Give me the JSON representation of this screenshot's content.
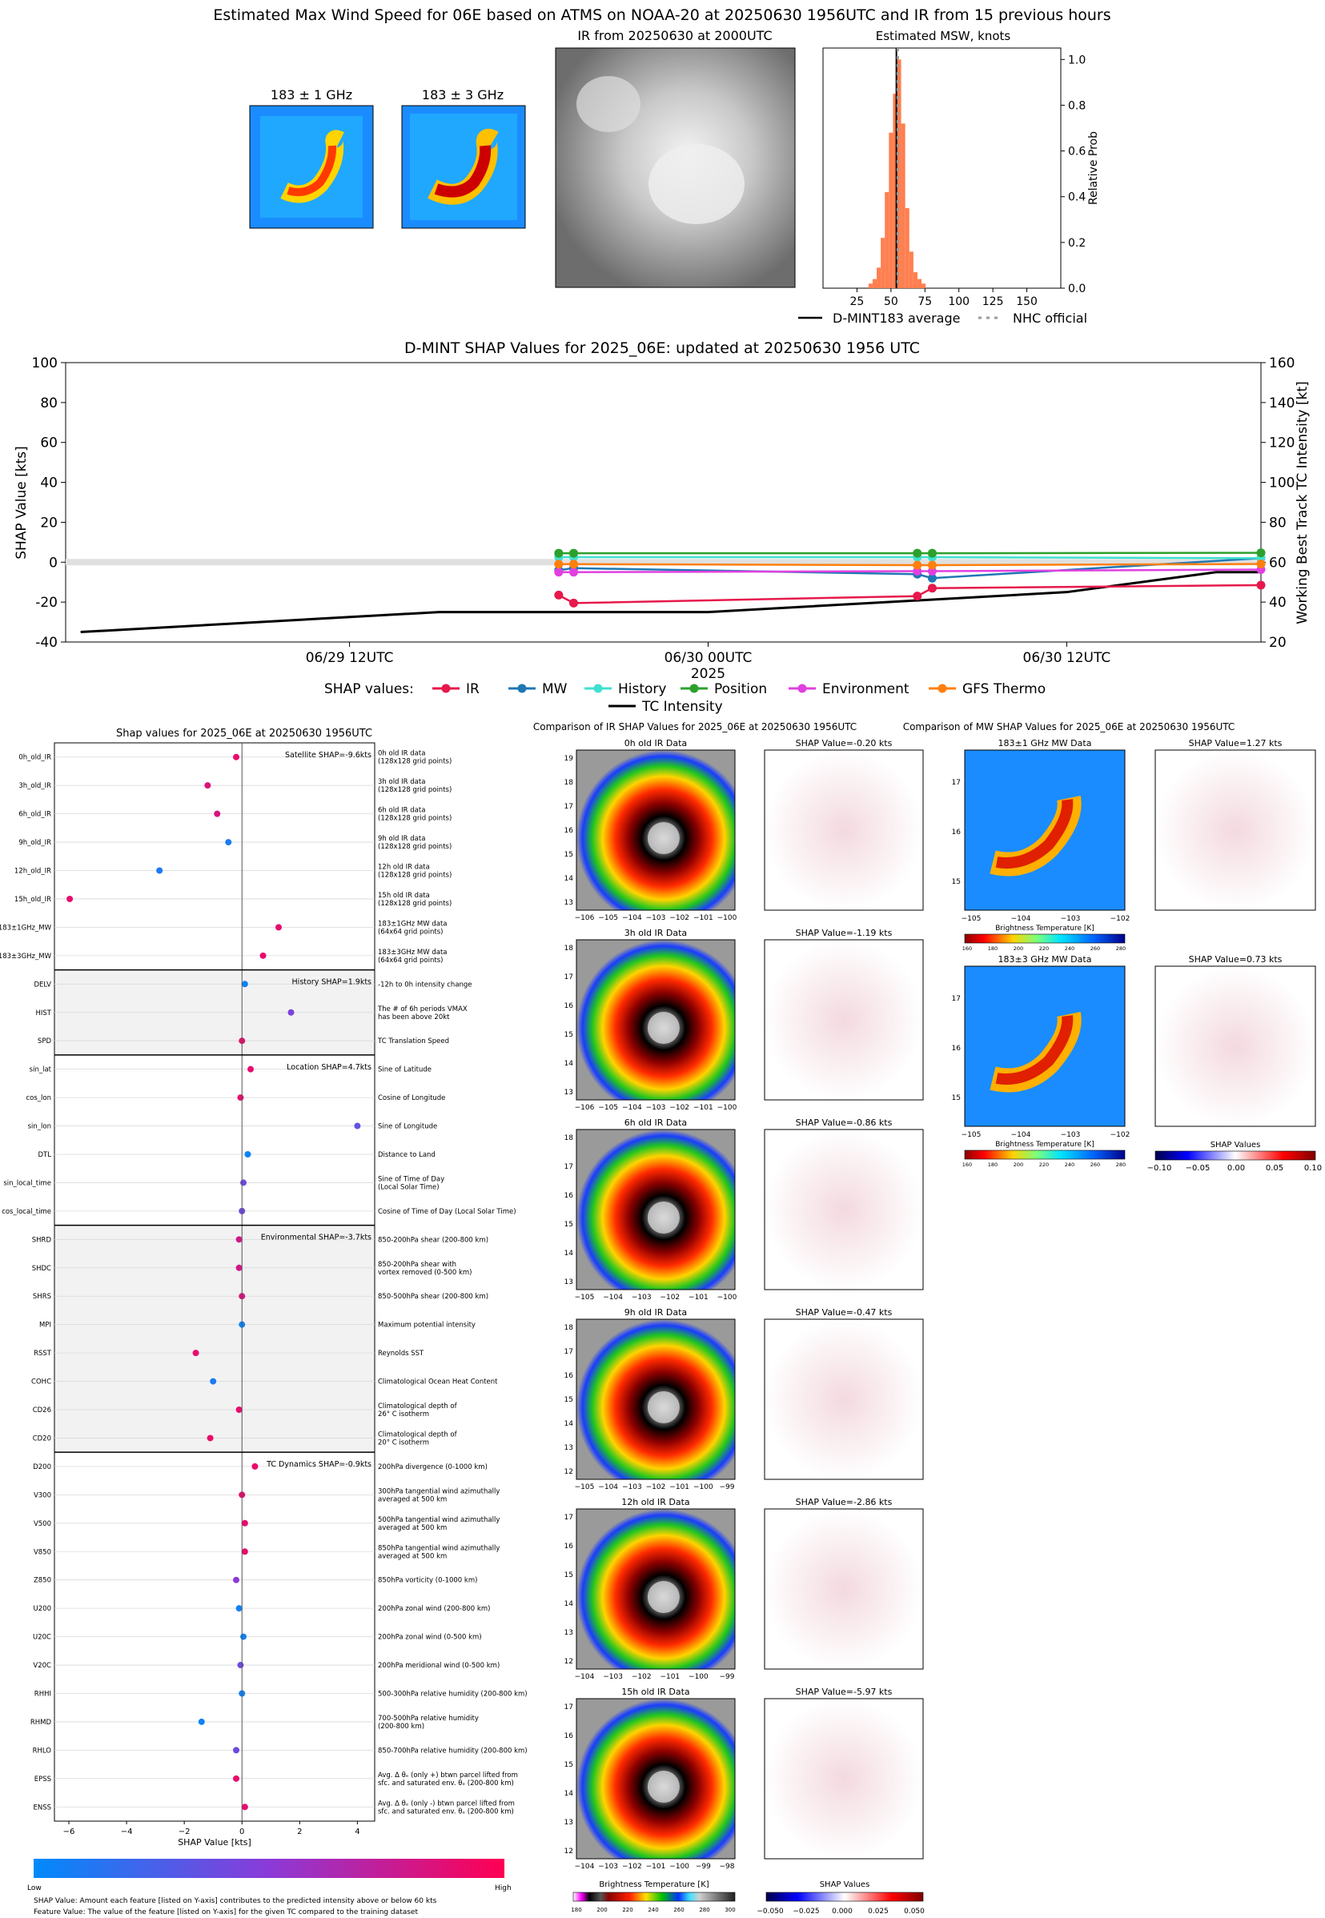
{
  "suptitle": "Estimated Max Wind Speed for 06E based on ATMS on NOAA-20 at 20250630 1956UTC and IR from 15 previous hours",
  "top": {
    "mw1_title": "183 ± 1 GHz",
    "mw3_title": "183 ± 3 GHz",
    "ir_title": "IR from 20250630 at 2000UTC",
    "hist_title": "Estimated MSW, knots",
    "hist_ylabel": "Relative Prob",
    "legend_avg": "D-MINT183 average",
    "legend_nhc": "NHC official"
  },
  "shap_title": "D-MINT SHAP Values for 2025_06E: updated at 20250630 1956 UTC",
  "left_title": "Shap values for 2025_06E at 20250630 1956UTC",
  "ir_comp_title": "Comparison of IR SHAP Values for 2025_06E at 20250630 1956UTC",
  "mw_comp_title": "Comparison of MW SHAP Values for 2025_06E at 20250630 1956UTC",
  "ir_panels": [
    {
      "data": "0h old IR Data",
      "shap": "SHAP Value=-0.20 kts",
      "ticks": [
        "−106",
        "−105",
        "−104",
        "−103",
        "−102",
        "−101",
        "−100"
      ],
      "yt": [
        "19",
        "18",
        "17",
        "16",
        "15",
        "14",
        "13"
      ]
    },
    {
      "data": "3h old IR Data",
      "shap": "SHAP Value=-1.19 kts",
      "ticks": [
        "−106",
        "−105",
        "−104",
        "−103",
        "−102",
        "−101",
        "−100"
      ],
      "yt": [
        "18",
        "17",
        "16",
        "15",
        "14",
        "13"
      ]
    },
    {
      "data": "6h old IR Data",
      "shap": "SHAP Value=-0.86 kts",
      "ticks": [
        "−105",
        "−104",
        "−103",
        "−102",
        "−101",
        "−100"
      ],
      "yt": [
        "18",
        "17",
        "16",
        "15",
        "14",
        "13"
      ]
    },
    {
      "data": "9h old IR Data",
      "shap": "SHAP Value=-0.47 kts",
      "ticks": [
        "−105",
        "−104",
        "−103",
        "−102",
        "−101",
        "−100",
        "−99"
      ],
      "yt": [
        "18",
        "17",
        "16",
        "15",
        "14",
        "13",
        "12"
      ]
    },
    {
      "data": "12h old IR Data",
      "shap": "SHAP Value=-2.86 kts",
      "ticks": [
        "−104",
        "−103",
        "−102",
        "−101",
        "−100",
        "−99"
      ],
      "yt": [
        "17",
        "16",
        "15",
        "14",
        "13",
        "12"
      ]
    },
    {
      "data": "15h old IR Data",
      "shap": "SHAP Value=-5.97 kts",
      "ticks": [
        "−104",
        "−103",
        "−102",
        "−101",
        "−100",
        "−99",
        "−98"
      ],
      "yt": [
        "17",
        "16",
        "15",
        "14",
        "13",
        "12"
      ]
    }
  ],
  "mw_panels": [
    {
      "data": "183±1 GHz MW Data",
      "shap": "SHAP Value=1.27 kts"
    },
    {
      "data": "183±3 GHz MW Data",
      "shap": "SHAP Value=0.73 kts"
    }
  ],
  "mw_ticks": [
    "−105",
    "−104",
    "−103",
    "−102"
  ],
  "mw_yticks": [
    "17",
    "16",
    "15"
  ],
  "bt_label": "Brightness Temperature [K]",
  "bt_ticks_mw": [
    "160",
    "180",
    "200",
    "220",
    "240",
    "260",
    "280"
  ],
  "bt_ticks_ir": [
    "180",
    "200",
    "220",
    "240",
    "260",
    "280",
    "300"
  ],
  "shap_values_label": "SHAP Values",
  "shap_cbar_mw_ticks": [
    "−0.10",
    "−0.05",
    "0.00",
    "0.05",
    "0.10"
  ],
  "shap_cbar_ir_ticks": [
    "−0.050",
    "−0.025",
    "0.000",
    "0.025",
    "0.050"
  ],
  "colorbar": {
    "low": "Low",
    "high": "High"
  },
  "footnote1": "SHAP Value: Amount each feature [listed on Y-axis] contributes to the predicted intensity above or below 60 kts",
  "footnote2": "Feature Value: The value of the feature [listed on Y-axis] for the given TC compared to the training dataset",
  "group_labels": [
    "Satellite SHAP=-9.6kts",
    "History SHAP=1.9kts",
    "Location SHAP=4.7kts",
    "Environmental SHAP=-3.7kts",
    "TC Dynamics SHAP=-0.9kts"
  ],
  "chart_data": [
    {
      "type": "bar",
      "title": "Estimated MSW, knots",
      "ylabel": "Relative Prob",
      "xlim": [
        0,
        175
      ],
      "ylim": [
        0,
        1.05
      ],
      "xticks": [
        25,
        50,
        75,
        100,
        125,
        150
      ],
      "yticks": [
        0.0,
        0.2,
        0.4,
        0.6,
        0.8,
        1.0
      ],
      "bins": [
        {
          "x": 35,
          "p": 0.02
        },
        {
          "x": 38,
          "p": 0.04
        },
        {
          "x": 41,
          "p": 0.09
        },
        {
          "x": 44,
          "p": 0.22
        },
        {
          "x": 47,
          "p": 0.42
        },
        {
          "x": 50,
          "p": 0.68
        },
        {
          "x": 53,
          "p": 0.85
        },
        {
          "x": 56,
          "p": 1.0
        },
        {
          "x": 59,
          "p": 0.72
        },
        {
          "x": 62,
          "p": 0.35
        },
        {
          "x": 65,
          "p": 0.16
        },
        {
          "x": 68,
          "p": 0.07
        },
        {
          "x": 71,
          "p": 0.04
        },
        {
          "x": 74,
          "p": 0.02
        }
      ],
      "avg": 54,
      "nhc": 55,
      "colors": {
        "bars": "#ff7f50",
        "avg": "#000000",
        "nhc": "#999999"
      }
    },
    {
      "type": "line",
      "title": "D-MINT SHAP Values for 2025_06E: updated at 20250630 1956 UTC",
      "ylabel": "SHAP Value [kts]",
      "y2label": "Working Best Track TC Intensity [kt]",
      "xlabel": "2025",
      "xticklabels": [
        "06/29 12UTC",
        "06/30 00UTC",
        "06/30 12UTC"
      ],
      "xtick_hours": [
        12,
        24,
        36
      ],
      "xlim": [
        2.5,
        42.5
      ],
      "ylim": [
        -40,
        100
      ],
      "yticks": [
        -40,
        -20,
        0,
        20,
        40,
        60,
        80,
        100
      ],
      "y2lim": [
        20,
        160
      ],
      "y2ticks": [
        20,
        40,
        60,
        80,
        100,
        120,
        140,
        160
      ],
      "legend_title": "SHAP values:",
      "series": [
        {
          "name": "IR",
          "color": "#e6194b",
          "x": [
            19,
            19.5,
            31,
            31.5,
            42.5
          ],
          "y": [
            -16.5,
            -20.5,
            -17,
            -13,
            -11.5
          ]
        },
        {
          "name": "MW",
          "color": "#1f77b4",
          "x": [
            19,
            19.5,
            31,
            31.5,
            42.5
          ],
          "y": [
            -4,
            -3,
            -6,
            -8,
            2
          ]
        },
        {
          "name": "History",
          "color": "#40e0d0",
          "x": [
            19,
            19.5,
            31,
            31.5,
            42.5
          ],
          "y": [
            2.5,
            2.5,
            2.5,
            2.5,
            2
          ]
        },
        {
          "name": "Position",
          "color": "#2ca02c",
          "x": [
            19,
            19.5,
            31,
            31.5,
            42.5
          ],
          "y": [
            4.5,
            4.5,
            4.5,
            4.5,
            4.7
          ]
        },
        {
          "name": "Environment",
          "color": "#e040e0",
          "x": [
            19,
            19.5,
            31,
            31.5,
            42.5
          ],
          "y": [
            -5,
            -5,
            -4.5,
            -4.5,
            -3.7
          ]
        },
        {
          "name": "GFS Thermo",
          "color": "#ff7f0e",
          "x": [
            19,
            19.5,
            31,
            31.5,
            42.5
          ],
          "y": [
            -1,
            -1,
            -1.5,
            -1.5,
            -0.9
          ]
        }
      ],
      "intensity": {
        "name": "TC Intensity",
        "color": "#000000",
        "x": [
          3,
          15,
          24,
          30,
          36,
          41,
          42.5
        ],
        "y": [
          25,
          35,
          35,
          40,
          45,
          55,
          55
        ]
      }
    },
    {
      "type": "scatter",
      "title": "Shap values for 2025_06E at 20250630 1956UTC",
      "xlabel": "SHAP Value [kts]",
      "xlim": [
        -6.5,
        4.6
      ],
      "xticks": [
        -6,
        -4,
        -2,
        0,
        2,
        4
      ],
      "features": [
        {
          "name": "0h_old_IR",
          "desc": [
            "0h old IR data",
            "(128x128 grid points)"
          ],
          "v": -0.2,
          "c": 0.9
        },
        {
          "name": "3h_old_IR",
          "desc": [
            "3h old IR data",
            "(128x128 grid points)"
          ],
          "v": -1.19,
          "c": 0.85
        },
        {
          "name": "6h_old_IR",
          "desc": [
            "6h old IR data",
            "(128x128 grid points)"
          ],
          "v": -0.86,
          "c": 0.82
        },
        {
          "name": "9h_old_IR",
          "desc": [
            "9h old IR data",
            "(128x128 grid points)"
          ],
          "v": -0.47,
          "c": 0.1
        },
        {
          "name": "12h_old_IR",
          "desc": [
            "12h old IR data",
            "(128x128 grid points)"
          ],
          "v": -2.86,
          "c": 0.1
        },
        {
          "name": "15h_old_IR",
          "desc": [
            "15h old IR data",
            "(128x128 grid points)"
          ],
          "v": -5.97,
          "c": 0.9
        },
        {
          "name": "183±1GHz_MW",
          "desc": [
            "183±1GHz MW data",
            "(64x64 grid points)"
          ],
          "v": 1.27,
          "c": 0.9
        },
        {
          "name": "183±3GHz_MW",
          "desc": [
            "183±3GHz MW data",
            "(64x64 grid points)"
          ],
          "v": 0.73,
          "c": 0.9
        },
        {
          "name": "DELV",
          "desc": [
            "-12h to 0h intensity change"
          ],
          "v": 0.1,
          "c": 0.05
        },
        {
          "name": "HIST",
          "desc": [
            "The # of 6h periods VMAX",
            "has been above 20kt"
          ],
          "v": 1.7,
          "c": 0.45
        },
        {
          "name": "SPD",
          "desc": [
            "TC Translation Speed"
          ],
          "v": 0.0,
          "c": 0.9
        },
        {
          "name": "sin_lat",
          "desc": [
            "Sine of Latitude"
          ],
          "v": 0.3,
          "c": 0.9
        },
        {
          "name": "cos_lon",
          "desc": [
            "Cosine of Longitude"
          ],
          "v": -0.05,
          "c": 0.9
        },
        {
          "name": "sin_lon",
          "desc": [
            "Sine of Longitude"
          ],
          "v": 4.0,
          "c": 0.35
        },
        {
          "name": "DTL",
          "desc": [
            "Distance to Land"
          ],
          "v": 0.2,
          "c": 0.05
        },
        {
          "name": "sin_local_time",
          "desc": [
            "Sine of Time of Day",
            "(Local Solar Time)"
          ],
          "v": 0.05,
          "c": 0.4
        },
        {
          "name": "cos_local_time",
          "desc": [
            "Cosine of Time of Day (Local Solar Time)"
          ],
          "v": 0.0,
          "c": 0.4
        },
        {
          "name": "SHRD",
          "desc": [
            "850-200hPa shear (200-800 km)"
          ],
          "v": -0.1,
          "c": 0.8
        },
        {
          "name": "SHDC",
          "desc": [
            "850-200hPa shear with",
            "vortex removed (0-500 km)"
          ],
          "v": -0.1,
          "c": 0.8
        },
        {
          "name": "SHRS",
          "desc": [
            "850-500hPa shear (200-800 km)"
          ],
          "v": 0.0,
          "c": 0.85
        },
        {
          "name": "MPI",
          "desc": [
            "Maximum potential intensity"
          ],
          "v": 0.0,
          "c": 0.05
        },
        {
          "name": "RSST",
          "desc": [
            "Reynolds SST"
          ],
          "v": -1.6,
          "c": 0.9
        },
        {
          "name": "COHC",
          "desc": [
            "Climatological Ocean Heat Content"
          ],
          "v": -1.0,
          "c": 0.1
        },
        {
          "name": "CD26",
          "desc": [
            "Climatological depth of",
            "26° C isotherm"
          ],
          "v": -0.1,
          "c": 0.9
        },
        {
          "name": "CD20",
          "desc": [
            "Climatological depth of",
            "20° C isotherm"
          ],
          "v": -1.1,
          "c": 0.9
        },
        {
          "name": "D200",
          "desc": [
            "200hPa divergence (0-1000 km)"
          ],
          "v": 0.45,
          "c": 0.9
        },
        {
          "name": "V300",
          "desc": [
            "300hPa tangential wind azimuthally",
            "averaged at 500 km"
          ],
          "v": 0.0,
          "c": 0.9
        },
        {
          "name": "V500",
          "desc": [
            "500hPa tangential wind azimuthally",
            "averaged at 500 km"
          ],
          "v": 0.1,
          "c": 0.9
        },
        {
          "name": "V850",
          "desc": [
            "850hPa tangential wind azimuthally",
            "averaged at 500 km"
          ],
          "v": 0.1,
          "c": 0.9
        },
        {
          "name": "Z850",
          "desc": [
            "850hPa vorticity (0-1000 km)"
          ],
          "v": -0.2,
          "c": 0.5
        },
        {
          "name": "U200",
          "desc": [
            "200hPa zonal wind (200-800 km)"
          ],
          "v": -0.1,
          "c": 0.05
        },
        {
          "name": "U20C",
          "desc": [
            "200hPa zonal wind (0-500 km)"
          ],
          "v": 0.05,
          "c": 0.05
        },
        {
          "name": "V20C",
          "desc": [
            "200hPa meridional wind (0-500 km)"
          ],
          "v": -0.05,
          "c": 0.4
        },
        {
          "name": "RHHI",
          "desc": [
            "500-300hPa relative humidity (200-800 km)"
          ],
          "v": 0.0,
          "c": 0.05
        },
        {
          "name": "RHMD",
          "desc": [
            "700-500hPa relative humidity",
            "(200-800 km)"
          ],
          "v": -1.4,
          "c": 0.05
        },
        {
          "name": "RHLO",
          "desc": [
            "850-700hPa relative humidity (200-800 km)"
          ],
          "v": -0.2,
          "c": 0.4
        },
        {
          "name": "EPSS",
          "desc": [
            "Avg. Δ θₑ (only +) btwn parcel lifted from",
            "sfc. and saturated env. θₑ (200-800 km)"
          ],
          "v": -0.2,
          "c": 0.9
        },
        {
          "name": "ENSS",
          "desc": [
            "Avg. Δ θₑ (only -) btwn parcel lifted from",
            "sfc. and saturated env. θₑ (200-800 km)"
          ],
          "v": 0.1,
          "c": 0.9
        }
      ]
    }
  ]
}
